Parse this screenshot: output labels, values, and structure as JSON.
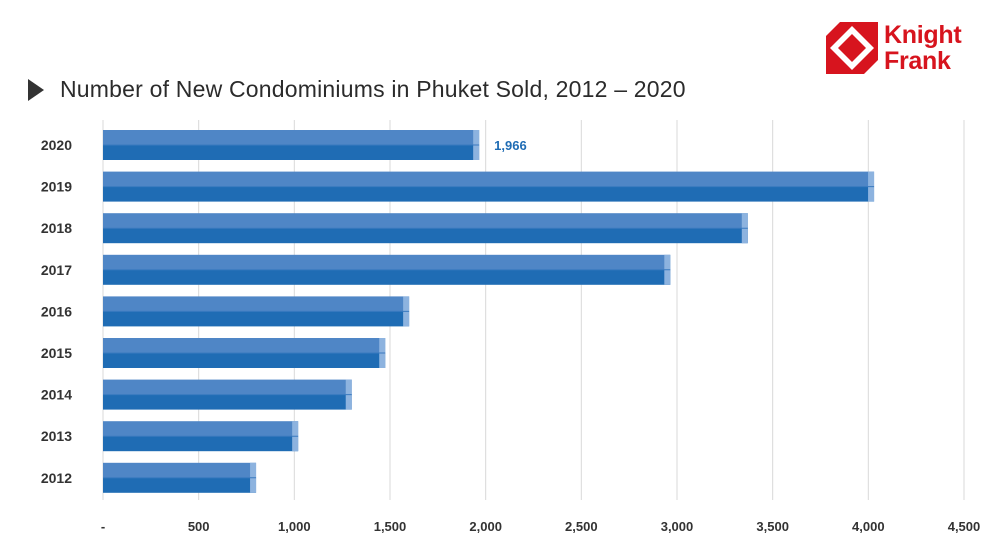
{
  "brand": {
    "name_line1": "Knight",
    "name_line2": "Frank",
    "color": "#d7141e"
  },
  "chart_data": {
    "type": "bar",
    "orientation": "horizontal",
    "title": "Number of New Condominiums in Phuket Sold, 2012 – 2020",
    "categories": [
      "2020",
      "2019",
      "2018",
      "2017",
      "2016",
      "2015",
      "2014",
      "2013",
      "2012"
    ],
    "values": [
      1966,
      4030,
      3370,
      2965,
      1600,
      1475,
      1300,
      1020,
      800
    ],
    "data_labels": [
      {
        "category": "2020",
        "text": "1,966"
      }
    ],
    "xlim": [
      0,
      4500
    ],
    "x_ticks": [
      0,
      500,
      1000,
      1500,
      2000,
      2500,
      3000,
      3500,
      4000,
      4500
    ],
    "x_tick_labels": [
      "-",
      "500",
      "1,000",
      "1,500",
      "2,000",
      "2,500",
      "3,000",
      "3,500",
      "4,000",
      "4,500"
    ],
    "xlabel": "",
    "ylabel": "",
    "grid": "vertical",
    "legend": "none",
    "bar_color_light": "#4f86c6",
    "bar_color_dark": "#1f6cb4",
    "label_color": "#1f6cb4"
  }
}
